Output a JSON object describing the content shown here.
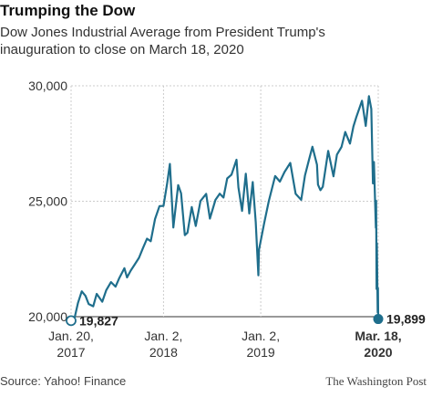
{
  "header": {
    "title": "Trumping the Dow",
    "subtitle": "Dow Jones Industrial Average from President Trump's inauguration to close on March 18, 2020"
  },
  "footer": {
    "source": "Source: Yahoo! Finance",
    "credit": "The Washington Post"
  },
  "chart_data": {
    "type": "line",
    "title": "Trumping the Dow",
    "ylim": [
      20000,
      30000
    ],
    "y_ticks": [
      {
        "value": 20000,
        "label": "20,000"
      },
      {
        "value": 25000,
        "label": "25,000"
      },
      {
        "value": 30000,
        "label": "30,000"
      }
    ],
    "x_ticks": [
      {
        "date": "2017-01-20",
        "line1": "Jan. 20,",
        "line2": "2017",
        "bold": false
      },
      {
        "date": "2018-01-02",
        "line1": "Jan. 2,",
        "line2": "2018",
        "bold": false
      },
      {
        "date": "2019-01-02",
        "line1": "Jan. 2,",
        "line2": "2019",
        "bold": false
      },
      {
        "date": "2020-03-18",
        "line1": "Mar. 18,",
        "line2": "2020",
        "bold": true
      }
    ],
    "grid": true,
    "colors": {
      "line": "#1f6e8c",
      "grid": "#cccccc",
      "axis": "#333333"
    },
    "series": [
      {
        "x": [
          "2017-01-20",
          "2017-02-01",
          "2017-02-15",
          "2017-03-01",
          "2017-03-15",
          "2017-03-27",
          "2017-04-13",
          "2017-04-26",
          "2017-05-17",
          "2017-06-01",
          "2017-06-19",
          "2017-07-06",
          "2017-07-19",
          "2017-08-08",
          "2017-08-18",
          "2017-09-01",
          "2017-09-15",
          "2017-10-02",
          "2017-10-16",
          "2017-11-01",
          "2017-11-15",
          "2017-12-01",
          "2017-12-18",
          "2018-01-02",
          "2018-01-16",
          "2018-01-26",
          "2018-02-08",
          "2018-02-26",
          "2018-03-09",
          "2018-03-23",
          "2018-04-02",
          "2018-04-18",
          "2018-05-03",
          "2018-05-21",
          "2018-06-11",
          "2018-06-25",
          "2018-07-16",
          "2018-08-01",
          "2018-08-15",
          "2018-08-29",
          "2018-09-14",
          "2018-10-03",
          "2018-10-10",
          "2018-10-24",
          "2018-11-07",
          "2018-11-20",
          "2018-12-03",
          "2018-12-14",
          "2018-12-24",
          "2018-12-26",
          "2019-01-15",
          "2019-02-01",
          "2019-02-25",
          "2019-03-15",
          "2019-04-01",
          "2019-04-23",
          "2019-05-13",
          "2019-06-03",
          "2019-06-17",
          "2019-07-02",
          "2019-07-15",
          "2019-08-01",
          "2019-08-05",
          "2019-08-14",
          "2019-08-23",
          "2019-09-12",
          "2019-10-02",
          "2019-10-15",
          "2019-11-01",
          "2019-11-15",
          "2019-12-03",
          "2019-12-16",
          "2019-12-27",
          "2020-01-17",
          "2020-01-31",
          "2020-02-12",
          "2020-02-21",
          "2020-02-27",
          "2020-03-02",
          "2020-03-09",
          "2020-03-10",
          "2020-03-12",
          "2020-03-13",
          "2020-03-16",
          "2020-03-17",
          "2020-03-18"
        ],
        "values": [
          19827,
          19890,
          20600,
          21100,
          20900,
          20550,
          20450,
          20990,
          20650,
          21150,
          21500,
          21300,
          21650,
          22100,
          21700,
          22000,
          22250,
          22550,
          22950,
          23380,
          23270,
          24230,
          24790,
          24800,
          25800,
          26616,
          23860,
          25700,
          25340,
          23530,
          23640,
          24750,
          23930,
          25010,
          25320,
          24250,
          25060,
          25330,
          25160,
          25990,
          26150,
          26800,
          25600,
          24580,
          26190,
          24470,
          25830,
          24100,
          21790,
          22880,
          24060,
          25000,
          26090,
          25850,
          26260,
          26660,
          25320,
          25060,
          26110,
          26790,
          27360,
          26580,
          25720,
          25480,
          25630,
          27180,
          26080,
          27020,
          27350,
          28000,
          27500,
          28240,
          28650,
          29350,
          28260,
          29550,
          29000,
          25770,
          26700,
          23850,
          25020,
          21200,
          23180,
          20190,
          21240,
          19899
        ]
      }
    ],
    "labels": {
      "start": "19,827",
      "end": "19,899"
    }
  }
}
